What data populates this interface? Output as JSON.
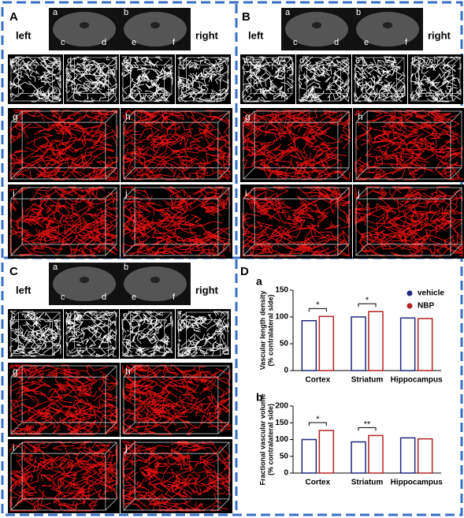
{
  "panels": [
    {
      "label": "A",
      "left": "left",
      "right": "right",
      "slice_letters": [
        "a",
        "c",
        "d",
        "b",
        "e",
        "f"
      ],
      "cube_letters": [
        "c",
        "d",
        "e",
        "f"
      ],
      "red_letters": [
        "g",
        "h",
        "i",
        "j"
      ]
    },
    {
      "label": "B",
      "left": "left",
      "right": "right",
      "slice_letters": [
        "a",
        "c",
        "d",
        "b",
        "e",
        "f"
      ],
      "cube_letters": [
        "c",
        "d",
        "e",
        "f"
      ],
      "red_letters": [
        "g",
        "h",
        "i",
        "j"
      ]
    },
    {
      "label": "C",
      "left": "left",
      "right": "right",
      "slice_letters": [
        "a",
        "c",
        "d",
        "b",
        "e",
        "f"
      ],
      "cube_letters": [
        "c",
        "d",
        "e",
        "f"
      ],
      "red_letters": [
        "g",
        "h",
        "i",
        "j"
      ]
    }
  ],
  "panel_d_label": "D",
  "chart_data": [
    {
      "type": "bar",
      "title": "a",
      "ylabel": [
        "Vascular length density",
        "(% contralateral side)"
      ],
      "categories": [
        "Cortex",
        "Striatum",
        "Hippocampus"
      ],
      "series": [
        {
          "name": "vehicle",
          "color": "#1f2a7a",
          "values": [
            93,
            100,
            98
          ]
        },
        {
          "name": "NBP",
          "color": "#b22222",
          "values": [
            101,
            110,
            97
          ]
        }
      ],
      "significance": [
        "*",
        "*",
        null
      ],
      "ylim": [
        0,
        150
      ],
      "yticks": [
        0,
        50,
        100,
        150
      ]
    },
    {
      "type": "bar",
      "title": "b",
      "ylabel": [
        "Fractional vascular volume",
        "(% contralateral side)"
      ],
      "categories": [
        "Cortex",
        "Striatum",
        "Hippocampus"
      ],
      "series": [
        {
          "color": "#1f2a7a",
          "values": [
            100,
            93,
            105
          ]
        },
        {
          "color": "#b22222",
          "values": [
            127,
            112,
            102
          ]
        }
      ],
      "significance": [
        "*",
        "**",
        null
      ],
      "ylim": [
        0,
        200
      ],
      "yticks": [
        0,
        50,
        100,
        150,
        200
      ]
    }
  ]
}
